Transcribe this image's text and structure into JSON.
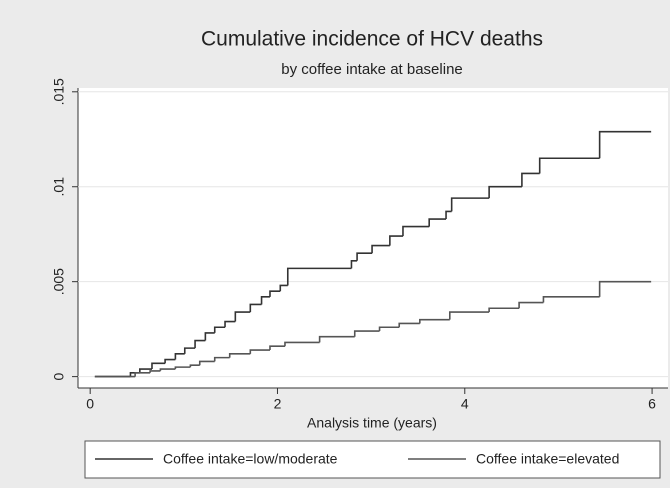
{
  "chart_data": {
    "type": "step",
    "title": "Cumulative incidence of HCV deaths",
    "subtitle": "by coffee intake at baseline",
    "x_label": "Analysis time (years)",
    "xlim": [
      -0.13,
      6.17
    ],
    "xticks": [
      0,
      2,
      4,
      6
    ],
    "ylim": [
      -0.0006,
      0.0152
    ],
    "yticks": [
      0,
      {
        "value": 0.005,
        "label": ".005"
      },
      {
        "value": 0.01,
        "label": ".01"
      },
      {
        "value": 0.015,
        "label": ".015"
      }
    ],
    "grid": true,
    "series": [
      {
        "name": "Coffee intake=low/moderate",
        "color": "#333333",
        "x": [
          0.05,
          0.43,
          0.53,
          0.66,
          0.8,
          0.91,
          1.01,
          1.12,
          1.23,
          1.33,
          1.44,
          1.55,
          1.71,
          1.83,
          1.92,
          2.03,
          2.11,
          2.79,
          2.85,
          3.01,
          3.2,
          3.34,
          3.62,
          3.8,
          3.86,
          4.26,
          4.61,
          4.8,
          5.44,
          5.99
        ],
        "values": [
          0,
          0.0002,
          0.0004,
          0.0007,
          0.0009,
          0.0012,
          0.0015,
          0.0019,
          0.0023,
          0.0026,
          0.0029,
          0.0034,
          0.0038,
          0.0042,
          0.0045,
          0.0048,
          0.0057,
          0.0061,
          0.0065,
          0.0069,
          0.0074,
          0.0079,
          0.0083,
          0.0087,
          0.0094,
          0.01,
          0.0107,
          0.0115,
          0.0129,
          0.0129
        ]
      },
      {
        "name": "Coffee intake=elevated",
        "color": "#555555",
        "x": [
          0.05,
          0.48,
          0.64,
          0.75,
          0.91,
          1.07,
          1.17,
          1.33,
          1.49,
          1.71,
          1.92,
          2.08,
          2.45,
          2.825,
          3.09,
          3.3,
          3.52,
          3.84,
          4.26,
          4.58,
          4.84,
          5.44,
          5.99
        ],
        "values": [
          0,
          0.0002,
          0.0003,
          0.0004,
          0.0005,
          0.0006,
          0.0008,
          0.001,
          0.0012,
          0.0014,
          0.0016,
          0.0018,
          0.0021,
          0.0024,
          0.0026,
          0.0028,
          0.003,
          0.0034,
          0.0036,
          0.0039,
          0.0042,
          0.005,
          0.005
        ]
      }
    ]
  }
}
